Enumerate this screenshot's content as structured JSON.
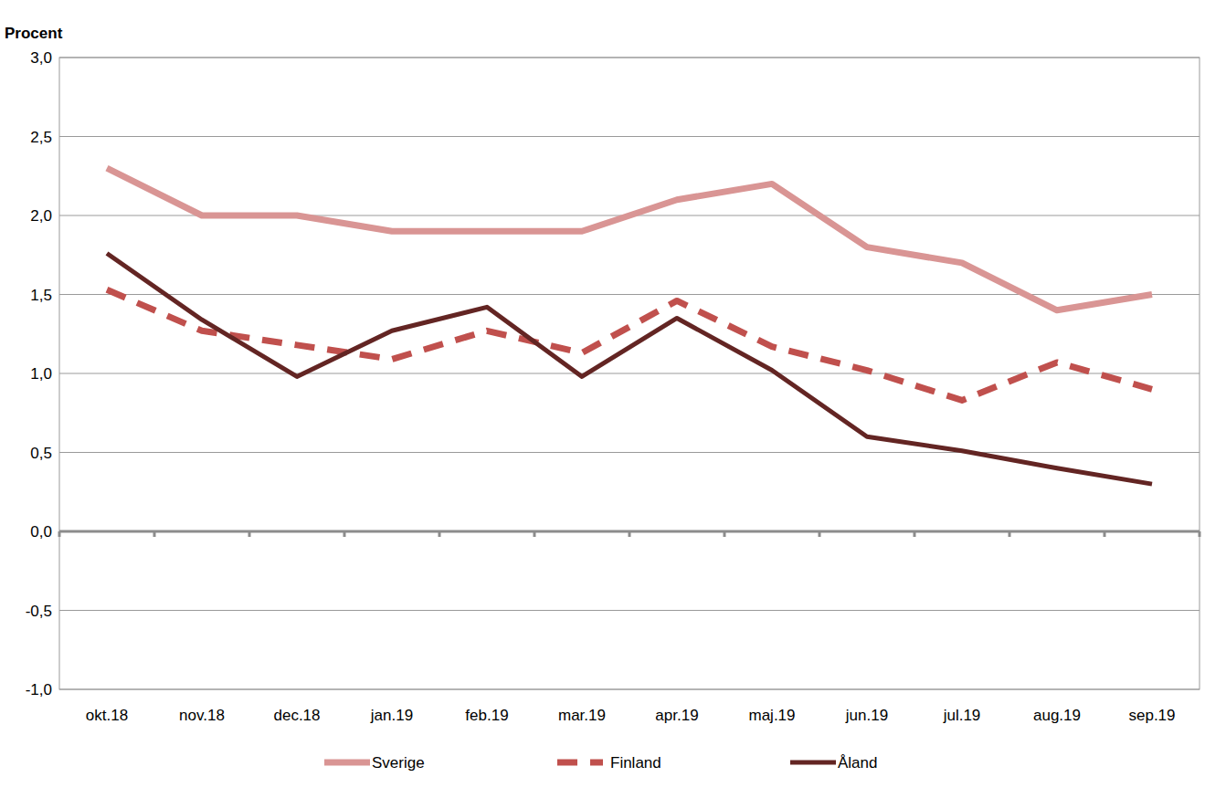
{
  "chart_data": {
    "type": "line",
    "y_label": "Procent",
    "categories": [
      "okt.18",
      "nov.18",
      "dec.18",
      "jan.19",
      "feb.19",
      "mar.19",
      "apr.19",
      "maj.19",
      "jun.19",
      "jul.19",
      "aug.19",
      "sep.19"
    ],
    "series": [
      {
        "name": "Sverige",
        "color": "#d99594",
        "line_style": "solid",
        "values": [
          2.3,
          2.0,
          2.0,
          1.9,
          1.9,
          1.9,
          2.1,
          2.2,
          1.8,
          1.7,
          1.4,
          1.5
        ]
      },
      {
        "name": "Finland",
        "color": "#c0504d",
        "line_style": "dashed",
        "values": [
          1.53,
          1.27,
          1.18,
          1.09,
          1.27,
          1.13,
          1.46,
          1.17,
          1.02,
          0.83,
          1.07,
          0.9
        ]
      },
      {
        "name": "Åland",
        "color": "#632523",
        "line_style": "solid",
        "values": [
          1.76,
          1.34,
          0.98,
          1.27,
          1.42,
          0.98,
          1.35,
          1.02,
          0.6,
          0.51,
          0.4,
          0.3
        ]
      }
    ],
    "ylim": [
      -1,
      3
    ],
    "yticks": [
      {
        "value": -1,
        "label": "-1,0"
      },
      {
        "value": -0.5,
        "label": "-0,5"
      },
      {
        "value": 0,
        "label": "0,0"
      },
      {
        "value": 0.5,
        "label": "0,5"
      },
      {
        "value": 1,
        "label": "1,0"
      },
      {
        "value": 1.5,
        "label": "1,5"
      },
      {
        "value": 2,
        "label": "2,0"
      },
      {
        "value": 2.5,
        "label": "2,5"
      },
      {
        "value": 3,
        "label": "3,0"
      }
    ],
    "grid": true,
    "legend": "bottom"
  }
}
